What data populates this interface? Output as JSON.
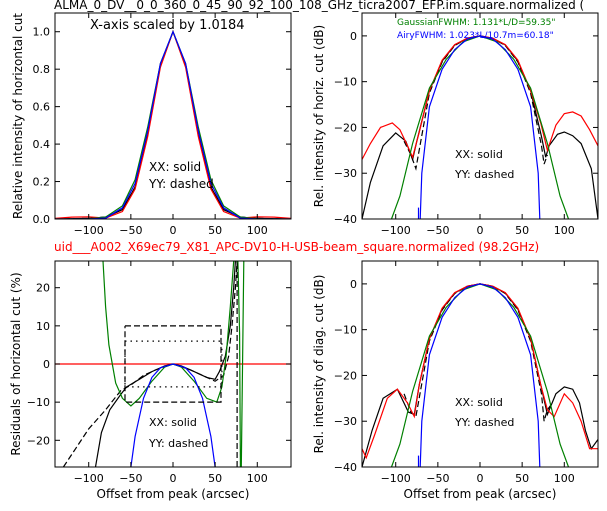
{
  "figure": {
    "title_top": "ALMA_0_DV__0_0_360_0_45_90_92_100_108_GHz_ticra2007_EFP.im.square.normalized (",
    "title_mid": "uid___A002_X69ec79_X81_APC-DV10-H-USB-beam_square.normalized (98.2GHz)",
    "title_mid_color": "#ff0000",
    "colors": {
      "black": "#000000",
      "red": "#ff0000",
      "green": "#008000",
      "blue": "#0000ff"
    }
  },
  "chart_data": [
    {
      "id": "tl",
      "type": "line",
      "ylabel": "Relative intensity of horizontal cut",
      "xlabel": "",
      "xlim": [
        -140,
        140
      ],
      "ylim": [
        0,
        1.1
      ],
      "xticks": [
        -100,
        -50,
        0,
        50,
        100
      ],
      "xtick_labels": [
        "−100",
        "−50",
        "0",
        "50",
        "100"
      ],
      "yticks": [
        0.0,
        0.2,
        0.4,
        0.6,
        0.8,
        1.0
      ],
      "ytick_labels": [
        "0.0",
        "0.2",
        "0.4",
        "0.6",
        "0.8",
        "1.0"
      ],
      "annotations": [
        "X-axis scaled by 1.0184",
        "XX: solid",
        "YY: dashed"
      ],
      "series": [
        {
          "color": "#000000",
          "style": "solid",
          "x": [
            -140,
            -100,
            -80,
            -60,
            -45,
            -30,
            -15,
            0,
            15,
            30,
            45,
            60,
            80,
            100,
            140
          ],
          "y": [
            0.0,
            0.003,
            0.01,
            0.05,
            0.17,
            0.45,
            0.82,
            1.0,
            0.82,
            0.45,
            0.17,
            0.05,
            0.01,
            0.003,
            0.0
          ]
        },
        {
          "color": "#000000",
          "style": "dashed",
          "x": [
            -140,
            -100,
            -80,
            -60,
            -45,
            -30,
            -15,
            0,
            15,
            30,
            45,
            60,
            80,
            100,
            140
          ],
          "y": [
            0.0,
            0.003,
            0.01,
            0.05,
            0.17,
            0.45,
            0.82,
            1.0,
            0.82,
            0.45,
            0.17,
            0.05,
            0.01,
            0.003,
            0.0
          ]
        },
        {
          "color": "#ff0000",
          "style": "solid",
          "x": [
            -140,
            -120,
            -100,
            -80,
            -60,
            -45,
            -30,
            -15,
            0,
            15,
            30,
            45,
            60,
            80,
            100,
            120,
            140
          ],
          "y": [
            0.003,
            0.01,
            0.012,
            0.005,
            0.04,
            0.16,
            0.44,
            0.81,
            1.0,
            0.81,
            0.44,
            0.16,
            0.04,
            0.005,
            0.012,
            0.01,
            0.003
          ]
        },
        {
          "color": "#008000",
          "style": "solid",
          "x": [
            -140,
            -100,
            -80,
            -60,
            -45,
            -30,
            -15,
            0,
            15,
            30,
            45,
            60,
            80,
            100,
            140
          ],
          "y": [
            0.0,
            0.001,
            0.01,
            0.07,
            0.21,
            0.49,
            0.83,
            1.0,
            0.83,
            0.49,
            0.21,
            0.07,
            0.01,
            0.001,
            0.0
          ]
        },
        {
          "color": "#0000ff",
          "style": "solid",
          "x": [
            -140,
            -100,
            -80,
            -60,
            -45,
            -30,
            -15,
            0,
            15,
            30,
            45,
            60,
            80,
            100,
            140
          ],
          "y": [
            0.0,
            0.0,
            0.005,
            0.06,
            0.19,
            0.47,
            0.83,
            1.0,
            0.83,
            0.47,
            0.19,
            0.06,
            0.005,
            0.0,
            0.0
          ]
        }
      ]
    },
    {
      "id": "tr",
      "type": "line",
      "ylabel": "Rel. intensity of horiz. cut (dB)",
      "xlabel": "",
      "xlim": [
        -140,
        140
      ],
      "ylim": [
        -40,
        5
      ],
      "xticks": [
        -100,
        -50,
        0,
        50,
        100
      ],
      "xtick_labels": [
        "−100",
        "−50",
        "0",
        "50",
        "100"
      ],
      "yticks": [
        0,
        -10,
        -20,
        -30,
        -40
      ],
      "ytick_labels": [
        "0",
        "−10",
        "−20",
        "−30",
        "−40"
      ],
      "annotations": [
        "GaussianFWHM: 1.131*L/D=59.35\"",
        "AiryFWHM: 1.023*L/10.7m=60.18\"",
        "XX: solid",
        "YY: dashed"
      ],
      "series": [
        {
          "color": "#000000",
          "style": "solid",
          "x": [
            -140,
            -130,
            -115,
            -100,
            -88,
            -80,
            -75,
            -60,
            -45,
            -30,
            -15,
            0,
            15,
            30,
            45,
            60,
            73,
            78,
            82,
            92,
            100,
            110,
            120,
            132,
            140
          ],
          "y": [
            -40,
            -32,
            -24,
            -21.2,
            -23,
            -27,
            -23,
            -12,
            -5.5,
            -2,
            -0.5,
            0,
            -0.5,
            -2,
            -5.5,
            -12,
            -22,
            -26.5,
            -24,
            -21.5,
            -21,
            -21.8,
            -23.5,
            -29,
            -40
          ]
        },
        {
          "color": "#000000",
          "style": "dashed",
          "x": [
            -90,
            -82,
            -76,
            -60,
            -45,
            -30,
            -15,
            0,
            15,
            30,
            45,
            60,
            73,
            76,
            80
          ],
          "y": [
            -23,
            -26,
            -29,
            -12.5,
            -5.7,
            -2.1,
            -0.5,
            0,
            -0.5,
            -2.1,
            -5.7,
            -12.5,
            -24,
            -28,
            -26
          ]
        },
        {
          "color": "#ff0000",
          "style": "solid",
          "x": [
            -140,
            -130,
            -118,
            -104,
            -95,
            -86,
            -80,
            -72,
            -60,
            -45,
            -30,
            -15,
            0,
            15,
            30,
            45,
            60,
            72,
            80,
            90,
            100,
            110,
            120,
            130,
            140
          ],
          "y": [
            -27,
            -23.5,
            -20,
            -19,
            -20.5,
            -24,
            -26.5,
            -21,
            -12,
            -5.3,
            -1.9,
            -0.5,
            0,
            -0.5,
            -1.9,
            -5.3,
            -12,
            -19,
            -25,
            -19.5,
            -17,
            -16.6,
            -17.5,
            -20.5,
            -24
          ]
        },
        {
          "color": "#008000",
          "style": "solid",
          "x": [
            -105,
            -95,
            -80,
            -60,
            -40,
            -20,
            0,
            20,
            40,
            60,
            80,
            95,
            105
          ],
          "y": [
            -40,
            -35,
            -23.5,
            -11.4,
            -5.1,
            -1.3,
            0,
            -1.3,
            -5.1,
            -11.4,
            -23.5,
            -35,
            -40
          ]
        },
        {
          "color": "#0000ff",
          "style": "solid",
          "x": [
            -71,
            -69,
            -60,
            -45,
            -30,
            -15,
            0,
            15,
            30,
            45,
            60,
            69,
            71
          ],
          "y": [
            -40,
            -30,
            -15.5,
            -7.3,
            -3,
            -0.7,
            0,
            -0.7,
            -3,
            -7.3,
            -15.5,
            -30,
            -40
          ]
        },
        {
          "color": "#0000ff",
          "style": "solid",
          "x": [
            -73,
            -73
          ],
          "y": [
            -37.5,
            -40
          ]
        }
      ]
    },
    {
      "id": "bl",
      "type": "line",
      "ylabel": "Residuals of horizontal cut (%)",
      "xlabel": "Offset from peak (arcsec)",
      "xlim": [
        -140,
        140
      ],
      "ylim": [
        -27,
        27
      ],
      "xticks": [
        -100,
        -50,
        0,
        50,
        100
      ],
      "xtick_labels": [
        "−100",
        "−50",
        "0",
        "50",
        "100"
      ],
      "yticks": [
        20,
        10,
        0,
        -10,
        -20
      ],
      "ytick_labels": [
        "20",
        "10",
        "0",
        "−10",
        "−20"
      ],
      "annotations": [
        "XX: solid",
        "YY: dashed"
      ],
      "series": [
        {
          "color": "#ff0000",
          "style": "solid",
          "x": [
            -140,
            140
          ],
          "y": [
            0,
            0
          ]
        },
        {
          "color": "#000000",
          "style": "solid",
          "x": [
            -92,
            -85,
            -75,
            -62,
            -55,
            -40,
            -25,
            -10,
            0,
            10,
            25,
            40,
            50,
            55,
            62,
            68,
            72,
            74
          ],
          "y": [
            -27,
            -18,
            -12,
            -8,
            -6,
            -4,
            -2,
            -0.5,
            0,
            -0.5,
            -2,
            -3.5,
            -4,
            -2,
            2,
            10,
            20,
            27
          ]
        },
        {
          "color": "#000000",
          "style": "dashed",
          "x": [
            -130,
            -115,
            -100,
            -80,
            -62,
            -50,
            -35,
            -20,
            0,
            20,
            35,
            50,
            60,
            66,
            70,
            74,
            76
          ],
          "y": [
            -27,
            -22,
            -17,
            -12,
            -7,
            -5.5,
            -3,
            -1.5,
            0,
            -1.5,
            -3,
            -4.5,
            -3,
            2,
            10,
            20,
            27
          ]
        },
        {
          "color": "#008000",
          "style": "solid",
          "x": [
            -83,
            -80,
            -76,
            -68,
            -60,
            -50,
            -40,
            -25,
            -10,
            0,
            10,
            25,
            40,
            52,
            58,
            63,
            68,
            72,
            77,
            79,
            80,
            81,
            84
          ],
          "y": [
            27,
            15,
            5,
            -5,
            -9,
            -11,
            -9,
            -4.5,
            -0.8,
            0,
            -0.8,
            -4.5,
            -9,
            -10,
            -6,
            2,
            15,
            27,
            27,
            8,
            -27,
            -27,
            27
          ]
        },
        {
          "color": "#0000ff",
          "style": "solid",
          "x": [
            -50,
            -45,
            -35,
            -25,
            -15,
            0,
            15,
            25,
            35,
            45,
            50
          ],
          "y": [
            -27,
            -19,
            -9,
            -3.5,
            -1,
            0,
            -1,
            -3.5,
            -9,
            -19,
            -27
          ]
        },
        {
          "color": "#000000",
          "style": "dashed",
          "x": [
            -57,
            57,
            57,
            -57,
            -57
          ],
          "y": [
            10,
            10,
            -10,
            -10,
            10
          ]
        },
        {
          "color": "#000000",
          "style": "dotted",
          "x": [
            -57,
            58,
            58,
            -57,
            -57
          ],
          "y": [
            6,
            6,
            -6,
            -6,
            6
          ]
        },
        {
          "color": "#000000",
          "style": "dashed",
          "x": [
            76,
            76
          ],
          "y": [
            -27,
            27
          ]
        }
      ]
    },
    {
      "id": "br",
      "type": "line",
      "ylabel": "Rel. intensity of diag. cut (dB)",
      "xlabel": "Offset from peak (arcsec)",
      "xlim": [
        -140,
        140
      ],
      "ylim": [
        -40,
        5
      ],
      "xticks": [
        -100,
        -50,
        0,
        50,
        100
      ],
      "xtick_labels": [
        "−100",
        "−50",
        "0",
        "50",
        "100"
      ],
      "yticks": [
        0,
        -10,
        -20,
        -30,
        -40
      ],
      "ytick_labels": [
        "0",
        "−10",
        "−20",
        "−30",
        "−40"
      ],
      "annotations": [
        "XX: solid",
        "YY: dashed"
      ],
      "series": [
        {
          "color": "#000000",
          "style": "solid",
          "x": [
            -140,
            -128,
            -115,
            -98,
            -85,
            -78,
            -72,
            -60,
            -45,
            -30,
            -15,
            0,
            15,
            30,
            45,
            60,
            72,
            80,
            90,
            100,
            110,
            118,
            125,
            132,
            140
          ],
          "y": [
            -40,
            -32,
            -25,
            -23,
            -28,
            -28.5,
            -22,
            -12,
            -5.5,
            -2,
            -0.5,
            0,
            -0.5,
            -2,
            -5.5,
            -12,
            -22,
            -28.5,
            -24,
            -22.5,
            -23,
            -26,
            -32,
            -36,
            -34
          ]
        },
        {
          "color": "#000000",
          "style": "dashed",
          "x": [
            -90,
            -82,
            -76,
            -60,
            -45,
            -30,
            -15,
            0,
            15,
            30,
            45,
            60,
            73,
            76,
            80,
            86
          ],
          "y": [
            -24,
            -28,
            -29,
            -12.5,
            -5.7,
            -2.1,
            -0.5,
            0,
            -0.5,
            -2.1,
            -5.7,
            -12.5,
            -24,
            -30,
            -27.5,
            -26
          ]
        },
        {
          "color": "#ff0000",
          "style": "solid",
          "x": [
            -140,
            -135,
            -125,
            -110,
            -98,
            -86,
            -78,
            -72,
            -60,
            -45,
            -30,
            -15,
            0,
            15,
            30,
            45,
            60,
            72,
            80,
            88,
            100,
            110,
            120,
            130,
            140
          ],
          "y": [
            -36,
            -38,
            -33,
            -25,
            -23,
            -26,
            -29,
            -22,
            -12,
            -5.3,
            -1.9,
            -0.5,
            0,
            -0.5,
            -1.9,
            -5.3,
            -12,
            -22,
            -27.5,
            -29,
            -24,
            -26,
            -30,
            -36,
            -36
          ]
        },
        {
          "color": "#008000",
          "style": "solid",
          "x": [
            -105,
            -95,
            -80,
            -60,
            -40,
            -20,
            0,
            20,
            40,
            60,
            80,
            95,
            105
          ],
          "y": [
            -40,
            -35,
            -23.5,
            -11.4,
            -5.1,
            -1.3,
            0,
            -1.3,
            -5.1,
            -11.4,
            -23.5,
            -35,
            -40
          ]
        },
        {
          "color": "#0000ff",
          "style": "solid",
          "x": [
            -71,
            -69,
            -60,
            -45,
            -30,
            -15,
            0,
            15,
            30,
            45,
            60,
            69,
            71
          ],
          "y": [
            -40,
            -30,
            -15.5,
            -7.3,
            -3,
            -0.7,
            0,
            -0.7,
            -3,
            -7.3,
            -15.5,
            -30,
            -40
          ]
        },
        {
          "color": "#0000ff",
          "style": "solid",
          "x": [
            -73,
            -73
          ],
          "y": [
            -37.5,
            -40
          ]
        }
      ]
    }
  ]
}
